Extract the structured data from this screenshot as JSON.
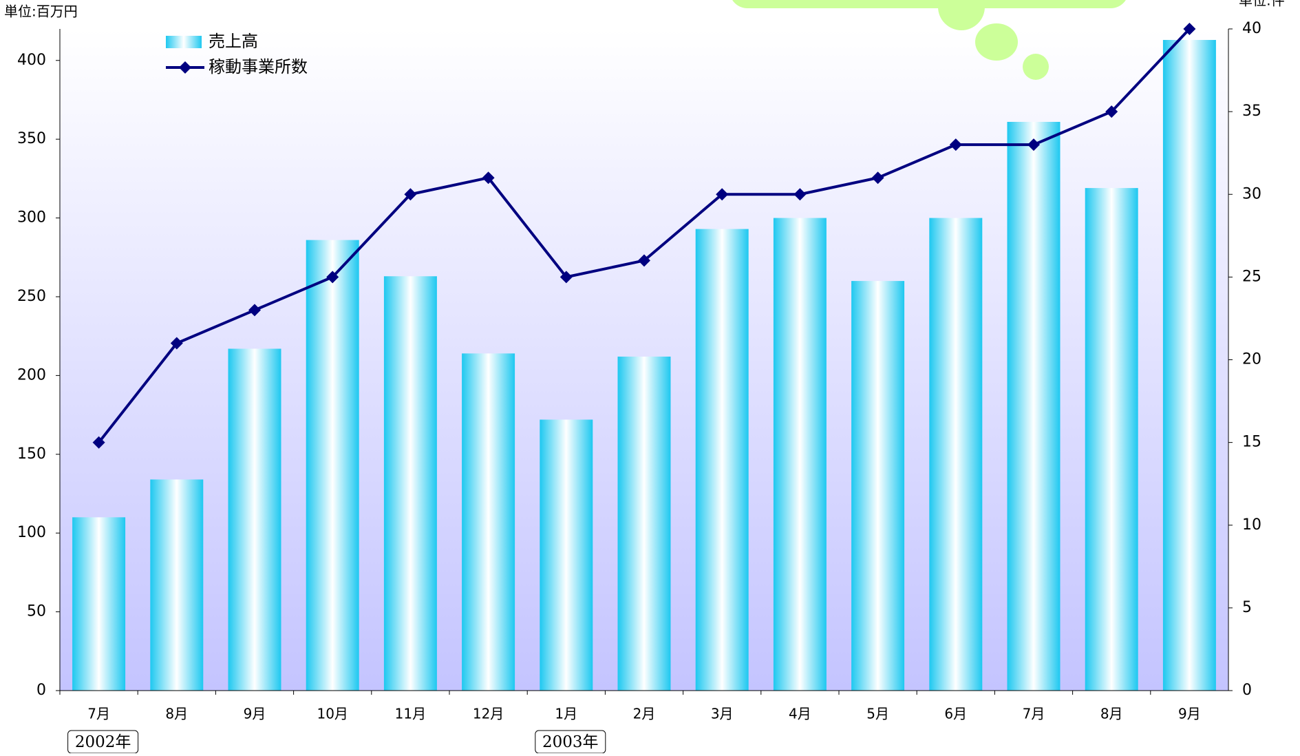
{
  "chart_data": {
    "type": "bar-line",
    "y_label": "単位:百万円",
    "y2_label": "単位:件",
    "categories": [
      "7月",
      "8月",
      "9月",
      "10月",
      "11月",
      "12月",
      "1月",
      "2月",
      "3月",
      "4月",
      "5月",
      "6月",
      "7月",
      "8月",
      "9月"
    ],
    "annotations": [
      "2002年",
      "2003年"
    ],
    "series": [
      {
        "name": "売上高",
        "type": "bar",
        "color": "#1ec8f0",
        "values": [
          110,
          134,
          217,
          286,
          263,
          214,
          172,
          212,
          293,
          300,
          260,
          300,
          361,
          319,
          413
        ]
      },
      {
        "name": "稼動事業所数",
        "type": "line",
        "axis": "y2",
        "color": "#000080",
        "values": [
          15,
          21,
          23,
          25,
          30,
          31,
          25,
          26,
          30,
          30,
          31,
          33,
          33,
          35,
          40
        ]
      }
    ],
    "ylim": [
      0,
      420
    ],
    "yticks": [
      0,
      50,
      100,
      150,
      200,
      250,
      300,
      350,
      400
    ],
    "y2lim": [
      0,
      40
    ],
    "y2ticks": [
      0,
      5,
      10,
      15,
      20,
      25,
      30,
      35,
      40
    ]
  }
}
